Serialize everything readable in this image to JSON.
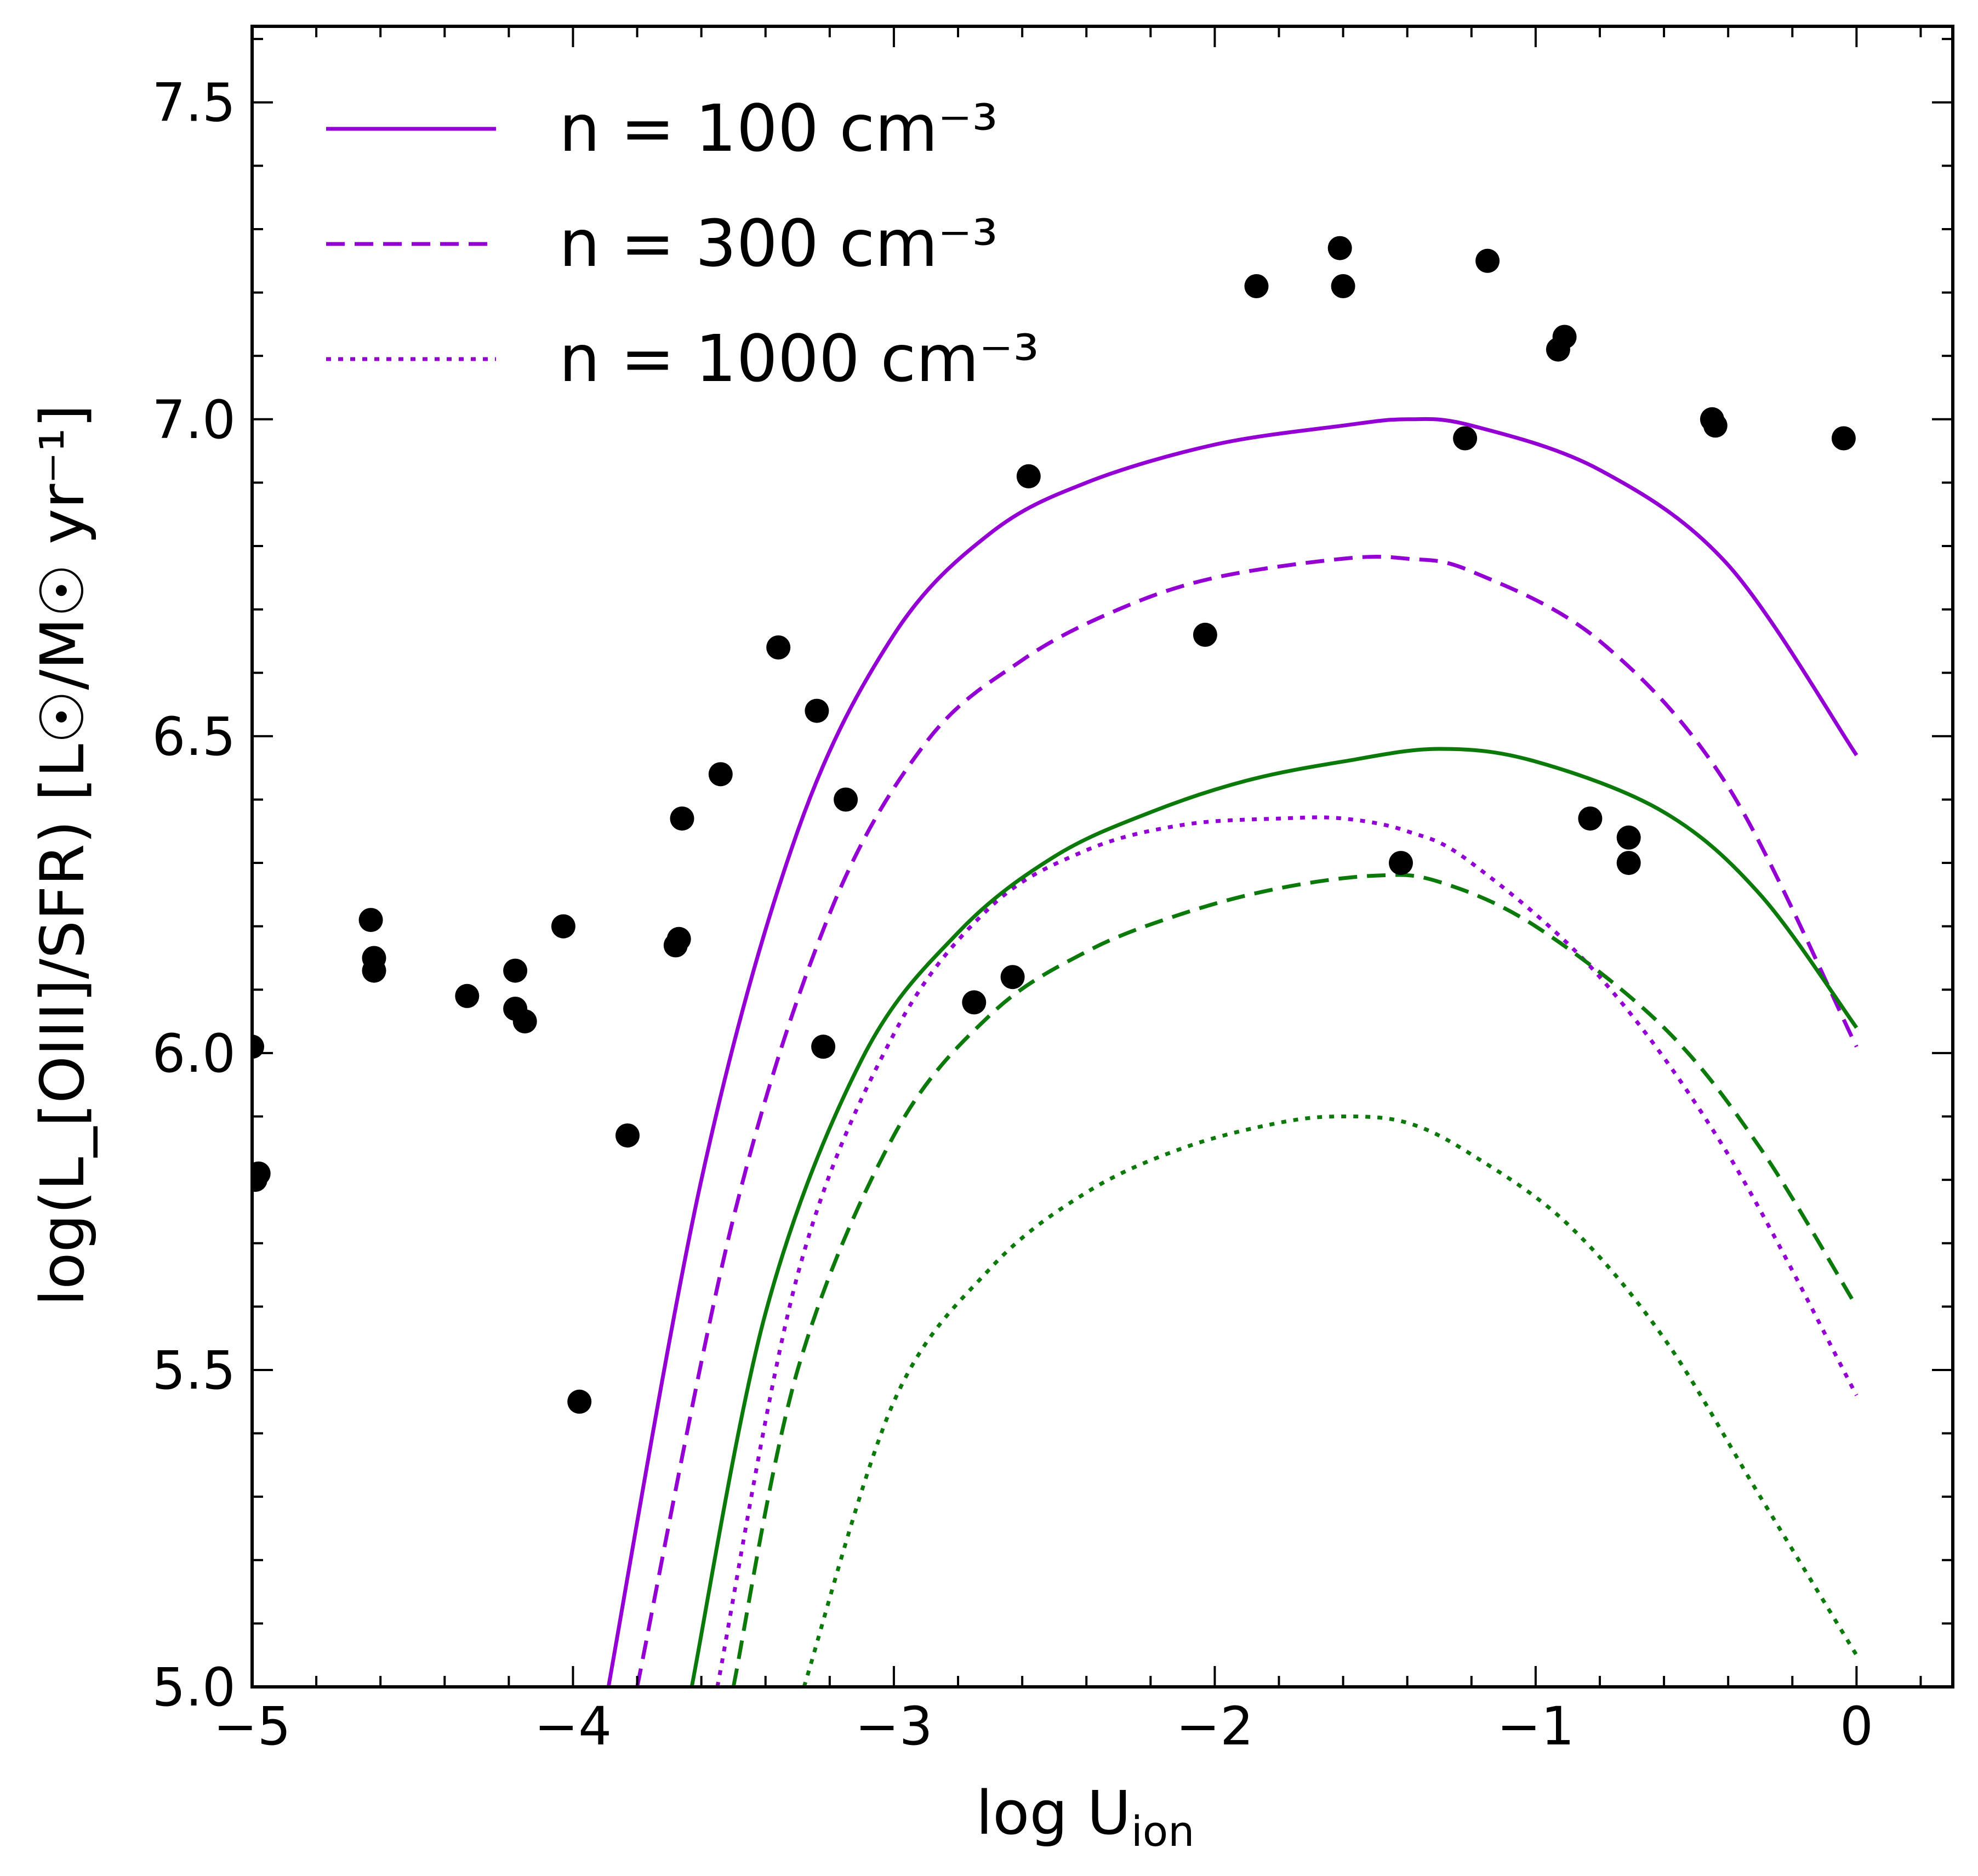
{
  "chart_data": {
    "type": "line",
    "title": "",
    "xlabel": "log U_ion",
    "xlabel_main": "log U",
    "xlabel_sub": "ion",
    "ylabel": "log(L_[OIII]/SFR) [L☉/M☉ yr⁻¹]",
    "xlim": [
      -5,
      0.3
    ],
    "ylim": [
      5.0,
      7.62
    ],
    "x_ticks": [
      -5,
      -4,
      -3,
      -2,
      -1,
      0
    ],
    "x_tick_labels": [
      "−5",
      "−4",
      "−3",
      "−2",
      "−1",
      "0"
    ],
    "y_ticks": [
      5.0,
      5.5,
      6.0,
      6.5,
      7.0,
      7.5
    ],
    "y_tick_labels": [
      "5.0",
      "5.5",
      "6.0",
      "6.5",
      "7.0",
      "7.5"
    ],
    "colors": {
      "purple": "#9400d3",
      "green": "#0b7a0b",
      "points": "#000000"
    },
    "legend": [
      {
        "label": "n = 100 cm⁻³",
        "style": "solid"
      },
      {
        "label": "n = 300 cm⁻³",
        "style": "dashed"
      },
      {
        "label": "n = 1000 cm⁻³",
        "style": "dotted"
      }
    ],
    "series": [
      {
        "name": "purple n=100",
        "color": "purple",
        "style": "solid",
        "x": [
          -3.9,
          -3.6,
          -3.3,
          -3.0,
          -2.7,
          -2.4,
          -2.0,
          -1.6,
          -1.4,
          -1.2,
          -0.8,
          -0.4,
          0.0
        ],
        "y": [
          4.97,
          5.8,
          6.35,
          6.66,
          6.82,
          6.9,
          6.96,
          6.99,
          7.0,
          6.99,
          6.92,
          6.77,
          6.47
        ]
      },
      {
        "name": "purple n=300",
        "color": "purple",
        "style": "dashed",
        "x": [
          -3.8,
          -3.5,
          -3.2,
          -2.9,
          -2.6,
          -2.3,
          -2.0,
          -1.6,
          -1.4,
          -1.2,
          -0.8,
          -0.4,
          0.0
        ],
        "y": [
          5.0,
          5.74,
          6.22,
          6.49,
          6.62,
          6.7,
          6.75,
          6.78,
          6.78,
          6.76,
          6.65,
          6.42,
          6.01
        ]
      },
      {
        "name": "purple n=1000",
        "color": "purple",
        "style": "dotted",
        "x": [
          -3.55,
          -3.3,
          -3.0,
          -2.7,
          -2.4,
          -2.1,
          -1.8,
          -1.6,
          -1.4,
          -1.2,
          -0.8,
          -0.4,
          0.0
        ],
        "y": [
          5.0,
          5.65,
          6.03,
          6.23,
          6.32,
          6.36,
          6.37,
          6.37,
          6.35,
          6.3,
          6.12,
          5.84,
          5.46
        ]
      },
      {
        "name": "green n=100",
        "color": "green",
        "style": "solid",
        "x": [
          -3.63,
          -3.4,
          -3.1,
          -2.8,
          -2.5,
          -2.2,
          -1.9,
          -1.6,
          -1.3,
          -1.0,
          -0.6,
          -0.3,
          0.0
        ],
        "y": [
          5.0,
          5.59,
          5.99,
          6.19,
          6.31,
          6.38,
          6.43,
          6.46,
          6.48,
          6.46,
          6.38,
          6.25,
          6.04
        ]
      },
      {
        "name": "green n=300",
        "color": "green",
        "style": "dashed",
        "x": [
          -3.5,
          -3.3,
          -3.0,
          -2.7,
          -2.4,
          -2.1,
          -1.8,
          -1.5,
          -1.3,
          -1.0,
          -0.6,
          -0.3,
          0.0
        ],
        "y": [
          5.0,
          5.5,
          5.87,
          6.06,
          6.16,
          6.22,
          6.26,
          6.28,
          6.27,
          6.2,
          6.04,
          5.85,
          5.6
        ]
      },
      {
        "name": "green n=1000",
        "color": "green",
        "style": "dotted",
        "x": [
          -3.28,
          -3.0,
          -2.7,
          -2.4,
          -2.1,
          -1.8,
          -1.6,
          -1.4,
          -1.2,
          -0.9,
          -0.6,
          -0.3,
          0.0
        ],
        "y": [
          5.0,
          5.45,
          5.66,
          5.78,
          5.85,
          5.89,
          5.9,
          5.89,
          5.84,
          5.73,
          5.55,
          5.3,
          5.05
        ]
      }
    ],
    "points": {
      "x": [
        -5.0,
        -4.98,
        -4.99,
        -4.63,
        -4.62,
        -4.62,
        -4.33,
        -4.18,
        -4.18,
        -4.15,
        -4.03,
        -3.98,
        -3.83,
        -3.68,
        -3.67,
        -3.66,
        -3.54,
        -3.36,
        -3.24,
        -3.22,
        -3.15,
        -2.75,
        -2.63,
        -2.58,
        -2.03,
        -1.87,
        -1.61,
        -1.6,
        -1.42,
        -1.22,
        -1.15,
        -0.93,
        -0.91,
        -0.83,
        -0.71,
        -0.71,
        -0.45,
        -0.44,
        -0.04
      ],
      "y": [
        6.01,
        5.81,
        5.8,
        6.21,
        6.15,
        6.13,
        6.09,
        6.13,
        6.07,
        6.05,
        6.2,
        5.45,
        5.87,
        6.17,
        6.18,
        6.37,
        6.44,
        6.64,
        6.54,
        6.01,
        6.4,
        6.08,
        6.12,
        6.91,
        6.66,
        7.21,
        7.27,
        7.21,
        6.3,
        6.97,
        7.25,
        7.11,
        7.13,
        6.37,
        6.34,
        6.3,
        7.0,
        6.99,
        6.97
      ]
    }
  }
}
